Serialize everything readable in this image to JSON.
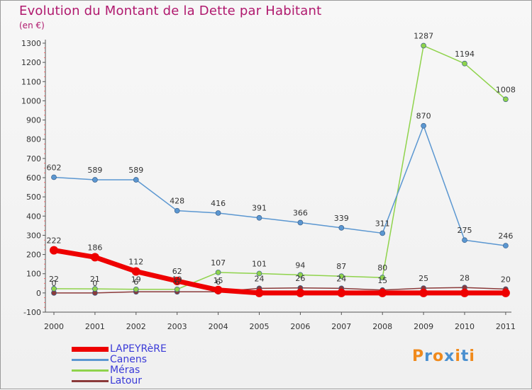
{
  "title": "Evolution du Montant de la Dette par Habitant",
  "subtitle": "(en €)",
  "logo": {
    "letters": [
      "P",
      "r",
      "o",
      "x",
      "i",
      "t",
      "i"
    ],
    "colors": [
      "#f08a1c",
      "#4a90d0",
      "#f08a1c",
      "#4a90d0",
      "#f08a1c",
      "#4a90d0",
      "#f08a1c"
    ]
  },
  "chart_data": {
    "type": "line",
    "title": "Evolution du Montant de la Dette par Habitant",
    "subtitle": "(en €)",
    "xlabel": "",
    "ylabel": "",
    "x": [
      "2000",
      "2001",
      "2002",
      "2003",
      "2004",
      "2005",
      "2006",
      "2007",
      "2008",
      "2009",
      "2010",
      "2011"
    ],
    "ylim": [
      -100,
      1300
    ],
    "yticks": [
      -100,
      0,
      100,
      200,
      300,
      400,
      500,
      600,
      700,
      800,
      900,
      1000,
      1100,
      1200,
      1300
    ],
    "grid": false,
    "legend_placement": "bottom-left",
    "series": [
      {
        "name": "LAPEYRèRE",
        "color": "#ee0000",
        "values": [
          222,
          186,
          112,
          62,
          15,
          0,
          0,
          0,
          0,
          0,
          0,
          0
        ],
        "labels": [
          "222",
          "186",
          "112",
          "62",
          "15",
          "",
          "",
          "",
          "",
          "",
          "",
          ""
        ]
      },
      {
        "name": "Canens",
        "color": "#5b97d1",
        "values": [
          602,
          589,
          589,
          428,
          416,
          391,
          366,
          339,
          311,
          870,
          275,
          246
        ],
        "labels": [
          "602",
          "589",
          "589",
          "428",
          "416",
          "391",
          "366",
          "339",
          "311",
          "870",
          "275",
          "246"
        ]
      },
      {
        "name": "Méras",
        "color": "#8fd34b",
        "values": [
          22,
          21,
          19,
          19,
          107,
          101,
          94,
          87,
          80,
          1287,
          1194,
          1008
        ],
        "labels": [
          "22",
          "21",
          "19",
          "19",
          "107",
          "101",
          "94",
          "87",
          "80",
          "1287",
          "1194",
          "1008"
        ]
      },
      {
        "name": "Latour",
        "color": "#8b3a3a",
        "values": [
          0,
          0,
          6,
          6,
          6,
          24,
          26,
          24,
          15,
          25,
          28,
          20
        ],
        "labels": [
          "0",
          "0",
          "6",
          "6",
          "6",
          "24",
          "26",
          "24",
          "15",
          "25",
          "28",
          "20"
        ]
      }
    ]
  }
}
